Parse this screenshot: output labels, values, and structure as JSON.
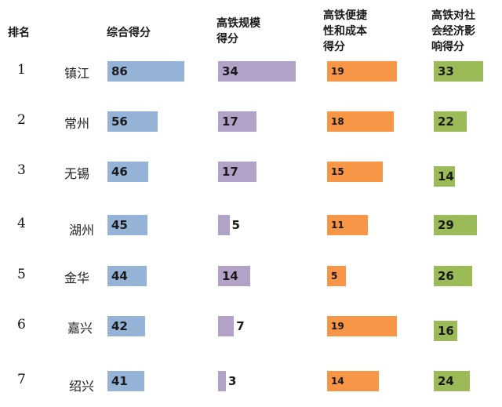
{
  "chart_data": {
    "type": "table",
    "title": "",
    "headers": [
      "排名",
      "综合得分",
      "高铁规模\n得分",
      "高铁便捷\n性和成本\n得分",
      "高铁对社\n会经济影\n响得分"
    ],
    "rows": [
      {
        "rank": "1",
        "city": "镇江",
        "composite": 86,
        "scale": 34,
        "convenience": 19,
        "impact": 33
      },
      {
        "rank": "2",
        "city": "常州",
        "composite": 56,
        "scale": 17,
        "convenience": 18,
        "impact": 22
      },
      {
        "rank": "3",
        "city": "无锡",
        "composite": 46,
        "scale": 17,
        "convenience": 15,
        "impact": 14
      },
      {
        "rank": "4",
        "city": "湖州",
        "composite": 45,
        "scale": 5,
        "convenience": 11,
        "impact": 29
      },
      {
        "rank": "5",
        "city": "金华",
        "composite": 44,
        "scale": 14,
        "convenience": 5,
        "impact": 26
      },
      {
        "rank": "6",
        "city": "嘉兴",
        "composite": 42,
        "scale": 7,
        "convenience": 19,
        "impact": 16
      },
      {
        "rank": "7",
        "city": "绍兴",
        "composite": 41,
        "scale": 3,
        "convenience": 14,
        "impact": 24
      }
    ],
    "colors": {
      "composite": "#95b3d7",
      "scale": "#b3a2c7",
      "convenience": "#f79646",
      "impact": "#9bbb59"
    }
  }
}
